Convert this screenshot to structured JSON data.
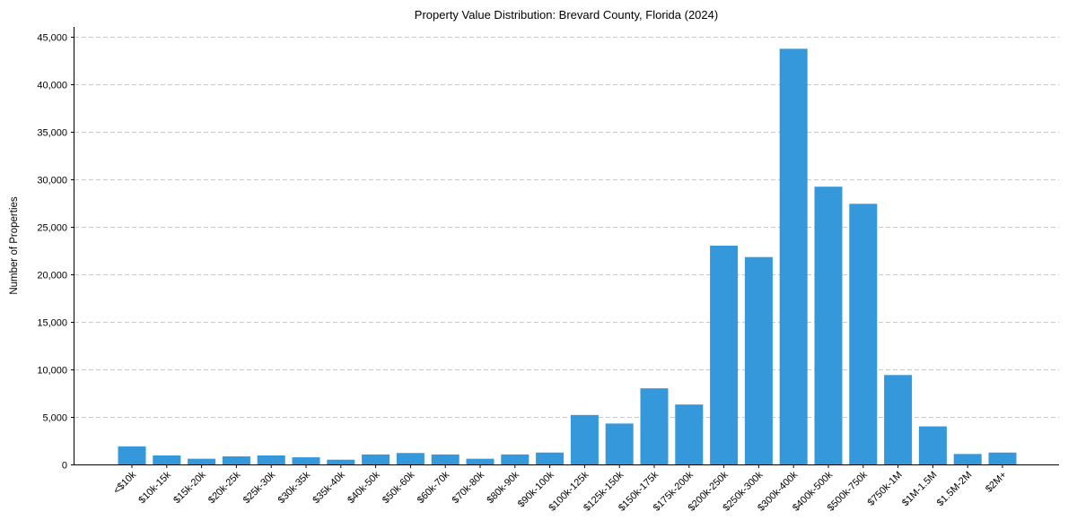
{
  "chart_data": {
    "type": "bar",
    "title": "Property Value Distribution: Brevard County, Florida (2024)",
    "xlabel": "",
    "ylabel": "Number of Properties",
    "ylim": [
      0,
      46000
    ],
    "yticks": [
      0,
      5000,
      10000,
      15000,
      20000,
      25000,
      30000,
      35000,
      40000,
      45000
    ],
    "ytick_labels": [
      "0",
      "5,000",
      "10,000",
      "15,000",
      "20,000",
      "25,000",
      "30,000",
      "35,000",
      "40,000",
      "45,000"
    ],
    "grid": "horizontal dashed",
    "bar_color": "#3498db",
    "categories": [
      "<$10k",
      "$10k-15k",
      "$15k-20k",
      "$20k-25k",
      "$25k-30k",
      "$30k-35k",
      "$35k-40k",
      "$40k-50k",
      "$50k-60k",
      "$60k-70k",
      "$70k-80k",
      "$80k-90k",
      "$90k-100k",
      "$100k-125k",
      "$125k-150k",
      "$150k-175k",
      "$175k-200k",
      "$200k-250k",
      "$250k-300k",
      "$300k-400k",
      "$400k-500k",
      "$500k-750k",
      "$750k-1M",
      "$1M-1.5M",
      "$1.5M-2M",
      "$2M+"
    ],
    "values": [
      1900,
      950,
      600,
      850,
      950,
      750,
      500,
      1050,
      1200,
      1050,
      600,
      1050,
      1250,
      5200,
      4300,
      8000,
      6300,
      23000,
      21800,
      43700,
      29200,
      27400,
      9400,
      4000,
      1100,
      1250
    ]
  }
}
